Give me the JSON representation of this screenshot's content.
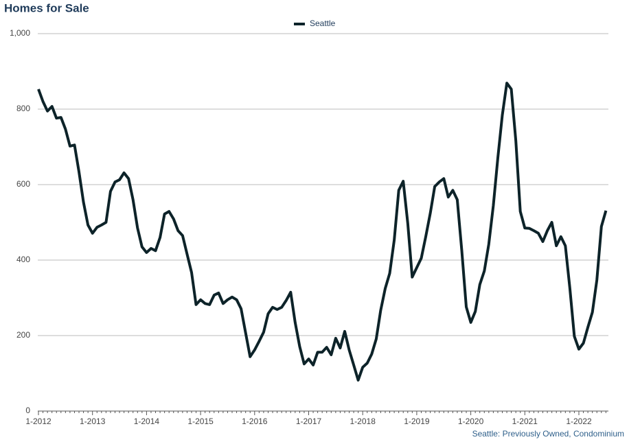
{
  "chart_data": {
    "type": "line",
    "title": "Homes for Sale",
    "footnote": "Seattle: Previously Owned, Condominium",
    "categories": [
      "1-2012",
      null,
      null,
      null,
      null,
      null,
      null,
      null,
      null,
      null,
      null,
      null,
      "1-2013",
      null,
      null,
      null,
      null,
      null,
      null,
      null,
      null,
      null,
      null,
      null,
      "1-2014",
      null,
      null,
      null,
      null,
      null,
      null,
      null,
      null,
      null,
      null,
      null,
      "1-2015",
      null,
      null,
      null,
      null,
      null,
      null,
      null,
      null,
      null,
      null,
      null,
      "1-2016",
      null,
      null,
      null,
      null,
      null,
      null,
      null,
      null,
      null,
      null,
      null,
      "1-2017",
      null,
      null,
      null,
      null,
      null,
      null,
      null,
      null,
      null,
      null,
      null,
      "1-2018",
      null,
      null,
      null,
      null,
      null,
      null,
      null,
      null,
      null,
      null,
      null,
      "1-2019",
      null,
      null,
      null,
      null,
      null,
      null,
      null,
      null,
      null,
      null,
      null,
      "1-2020",
      null,
      null,
      null,
      null,
      null,
      null,
      null,
      null,
      null,
      null,
      null,
      "1-2021",
      null,
      null,
      null,
      null,
      null,
      null,
      null,
      null,
      null,
      null,
      null,
      "1-2022",
      null,
      null,
      null,
      null,
      null,
      null
    ],
    "series": [
      {
        "name": "Seattle",
        "color": "#0d2329",
        "values": [
          853,
          820,
          795,
          807,
          776,
          778,
          747,
          702,
          705,
          634,
          553,
          493,
          471,
          487,
          493,
          500,
          582,
          607,
          613,
          631,
          616,
          560,
          485,
          435,
          420,
          431,
          425,
          460,
          522,
          529,
          509,
          478,
          465,
          416,
          367,
          282,
          295,
          285,
          282,
          307,
          313,
          285,
          295,
          302,
          295,
          271,
          207,
          144,
          162,
          185,
          209,
          258,
          275,
          269,
          275,
          293,
          315,
          235,
          171,
          125,
          138,
          122,
          156,
          156,
          169,
          149,
          193,
          167,
          211,
          162,
          122,
          82,
          116,
          127,
          151,
          191,
          267,
          325,
          365,
          453,
          585,
          609,
          498,
          355,
          380,
          405,
          462,
          524,
          595,
          607,
          616,
          567,
          585,
          560,
          425,
          276,
          235,
          264,
          335,
          371,
          442,
          544,
          671,
          784,
          869,
          853,
          716,
          529,
          485,
          484,
          478,
          471,
          449,
          478,
          500,
          438,
          462,
          438,
          325,
          198,
          164,
          180,
          222,
          262,
          347,
          489,
          531
        ]
      }
    ],
    "ylim": [
      0,
      1000
    ],
    "yticks": [
      0,
      200,
      400,
      600,
      800,
      {
        "value": 1000,
        "label": "1,000"
      }
    ],
    "grid": true,
    "legend": "top"
  }
}
